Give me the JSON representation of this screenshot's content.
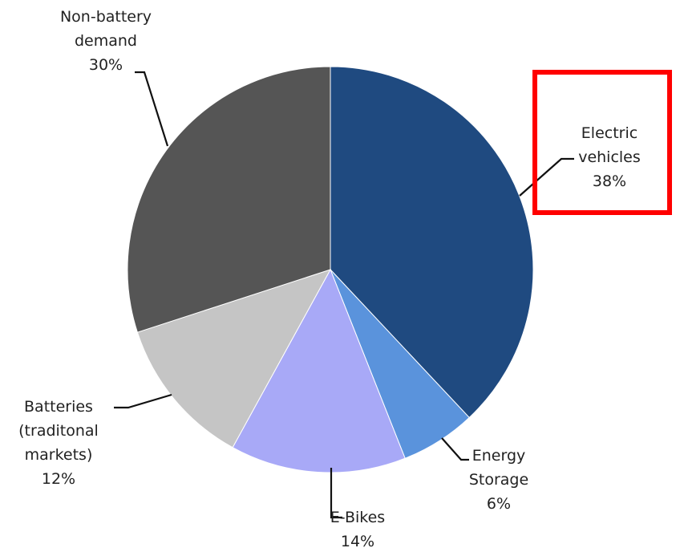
{
  "chart_data": {
    "type": "pie",
    "title": "",
    "start_angle_deg": 0,
    "direction": "clockwise",
    "slices": [
      {
        "label": [
          "Electric",
          "vehicles"
        ],
        "value": 38,
        "value_label": "38%",
        "color": "#1f4a80"
      },
      {
        "label": [
          "Energy",
          "Storage"
        ],
        "value": 6,
        "value_label": "6%",
        "color": "#5a93dc"
      },
      {
        "label": [
          "E-Bikes"
        ],
        "value": 14,
        "value_label": "14%",
        "color": "#a8a9f7"
      },
      {
        "label": [
          "Batteries",
          "(traditonal",
          "markets)"
        ],
        "value": 12,
        "value_label": "12%",
        "color": "#c5c5c5"
      },
      {
        "label": [
          "Non-battery",
          "demand"
        ],
        "value": 30,
        "value_label": "30%",
        "color": "#555555"
      }
    ],
    "highlight": {
      "target": "Electric vehicles",
      "color": "#ff0000"
    }
  }
}
